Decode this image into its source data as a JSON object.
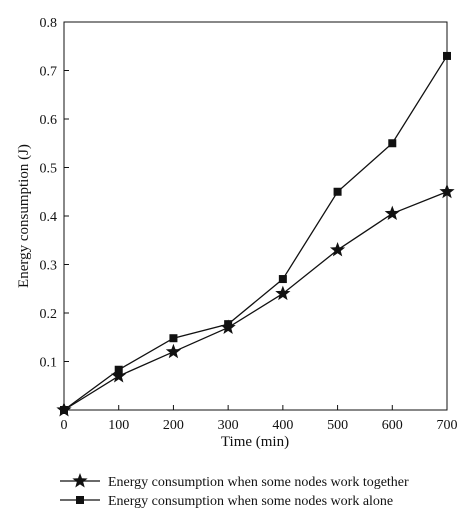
{
  "chart_data": {
    "type": "line",
    "xlabel": "Time (min)",
    "ylabel": "Energy consumption (J)",
    "xlim": [
      0,
      700
    ],
    "ylim": [
      0,
      0.8
    ],
    "x_ticks": [
      "0",
      "100",
      "200",
      "300",
      "400",
      "500",
      "600",
      "700"
    ],
    "y_ticks": [
      "0.1",
      "0.2",
      "0.3",
      "0.4",
      "0.5",
      "0.6",
      "0.7",
      "0.8"
    ],
    "grid": false,
    "legend_position": "bottom",
    "series": [
      {
        "name": "Energy consumption when some nodes work together",
        "marker": "star",
        "color": "#111111",
        "x": [
          0,
          100,
          200,
          300,
          400,
          500,
          600,
          700
        ],
        "y": [
          0.0,
          0.07,
          0.12,
          0.17,
          0.24,
          0.33,
          0.405,
          0.45
        ]
      },
      {
        "name": "Energy consumption when some nodes work alone",
        "marker": "square",
        "color": "#111111",
        "x": [
          0,
          100,
          200,
          300,
          400,
          500,
          600,
          700
        ],
        "y": [
          0.0,
          0.083,
          0.148,
          0.177,
          0.27,
          0.45,
          0.55,
          0.73
        ]
      }
    ]
  }
}
